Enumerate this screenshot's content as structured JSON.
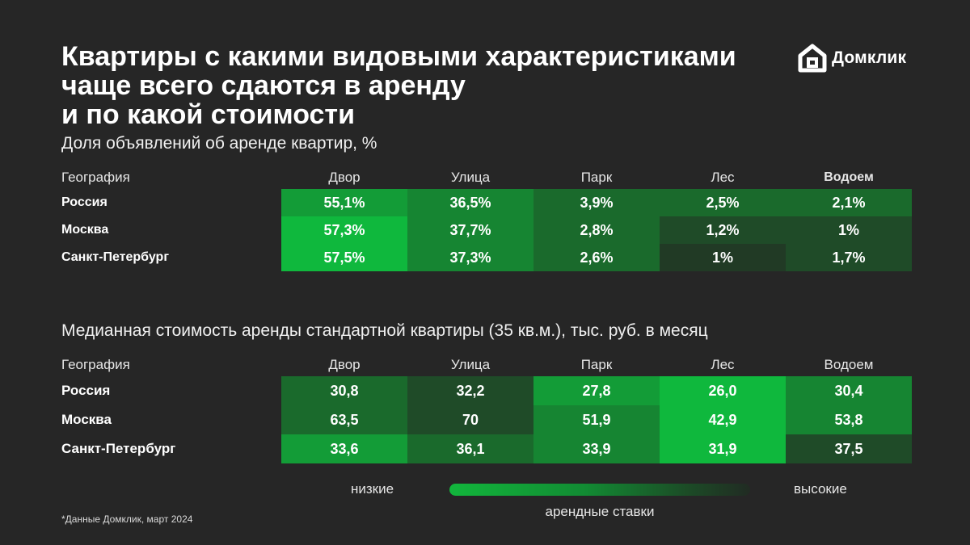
{
  "title_lines": [
    "Квартиры с какими видовыми характеристиками",
    "чаще всего сдаются в аренду",
    "и по какой стоимости"
  ],
  "brand": {
    "name": "Домклик",
    "icon": "domclick-house-logo-icon"
  },
  "colors": {
    "background": "#262626",
    "scale_low": "#12b63c",
    "scale_high": "#212b23"
  },
  "chart_data": [
    {
      "type": "table",
      "title": "Доля объявлений об аренде квартир, %",
      "geo_header": "География",
      "columns": [
        "Двор",
        "Улица",
        "Парк",
        "Лес",
        "Водоем"
      ],
      "rows": [
        {
          "label": "Россия",
          "values": [
            "55,1%",
            "36,5%",
            "3,9%",
            "2,5%",
            "2,1%"
          ],
          "shades": [
            1,
            2,
            3,
            3,
            3
          ]
        },
        {
          "label": "Москва",
          "values": [
            "57,3%",
            "37,7%",
            "2,8%",
            "1,2%",
            "1%"
          ],
          "shades": [
            0,
            2,
            3,
            4,
            4
          ]
        },
        {
          "label": "Санкт-Петербург",
          "values": [
            "57,5%",
            "37,3%",
            "2,6%",
            "1%",
            "1,7%"
          ],
          "shades": [
            0,
            2,
            3,
            5,
            4
          ]
        }
      ]
    },
    {
      "type": "table",
      "title": "Медианная стоимость аренды стандартной квартиры (35 кв.м.), тыс. руб. в месяц",
      "geo_header": "География",
      "columns": [
        "Двор",
        "Улица",
        "Парк",
        "Лес",
        "Водоем"
      ],
      "rows": [
        {
          "label": "Россия",
          "values": [
            "30,8",
            "32,2",
            "27,8",
            "26,0",
            "30,4"
          ],
          "shades": [
            3,
            4,
            1,
            0,
            2
          ]
        },
        {
          "label": "Москва",
          "values": [
            "63,5",
            "70",
            "51,9",
            "42,9",
            "53,8"
          ],
          "shades": [
            3,
            4,
            2,
            0,
            2
          ]
        },
        {
          "label": "Санкт-Петербург",
          "values": [
            "33,6",
            "36,1",
            "33,9",
            "31,9",
            "37,5"
          ],
          "shades": [
            1,
            3,
            2,
            0,
            4
          ]
        }
      ]
    }
  ],
  "shade_palette": [
    "#0fb83d",
    "#139c37",
    "#168532",
    "#1a6a2c",
    "#1f4b28",
    "#213a25"
  ],
  "legend": {
    "low": "низкие",
    "high": "высокие",
    "caption": "арендные ставки"
  },
  "footnote": "*Данные Домклик, март 2024"
}
